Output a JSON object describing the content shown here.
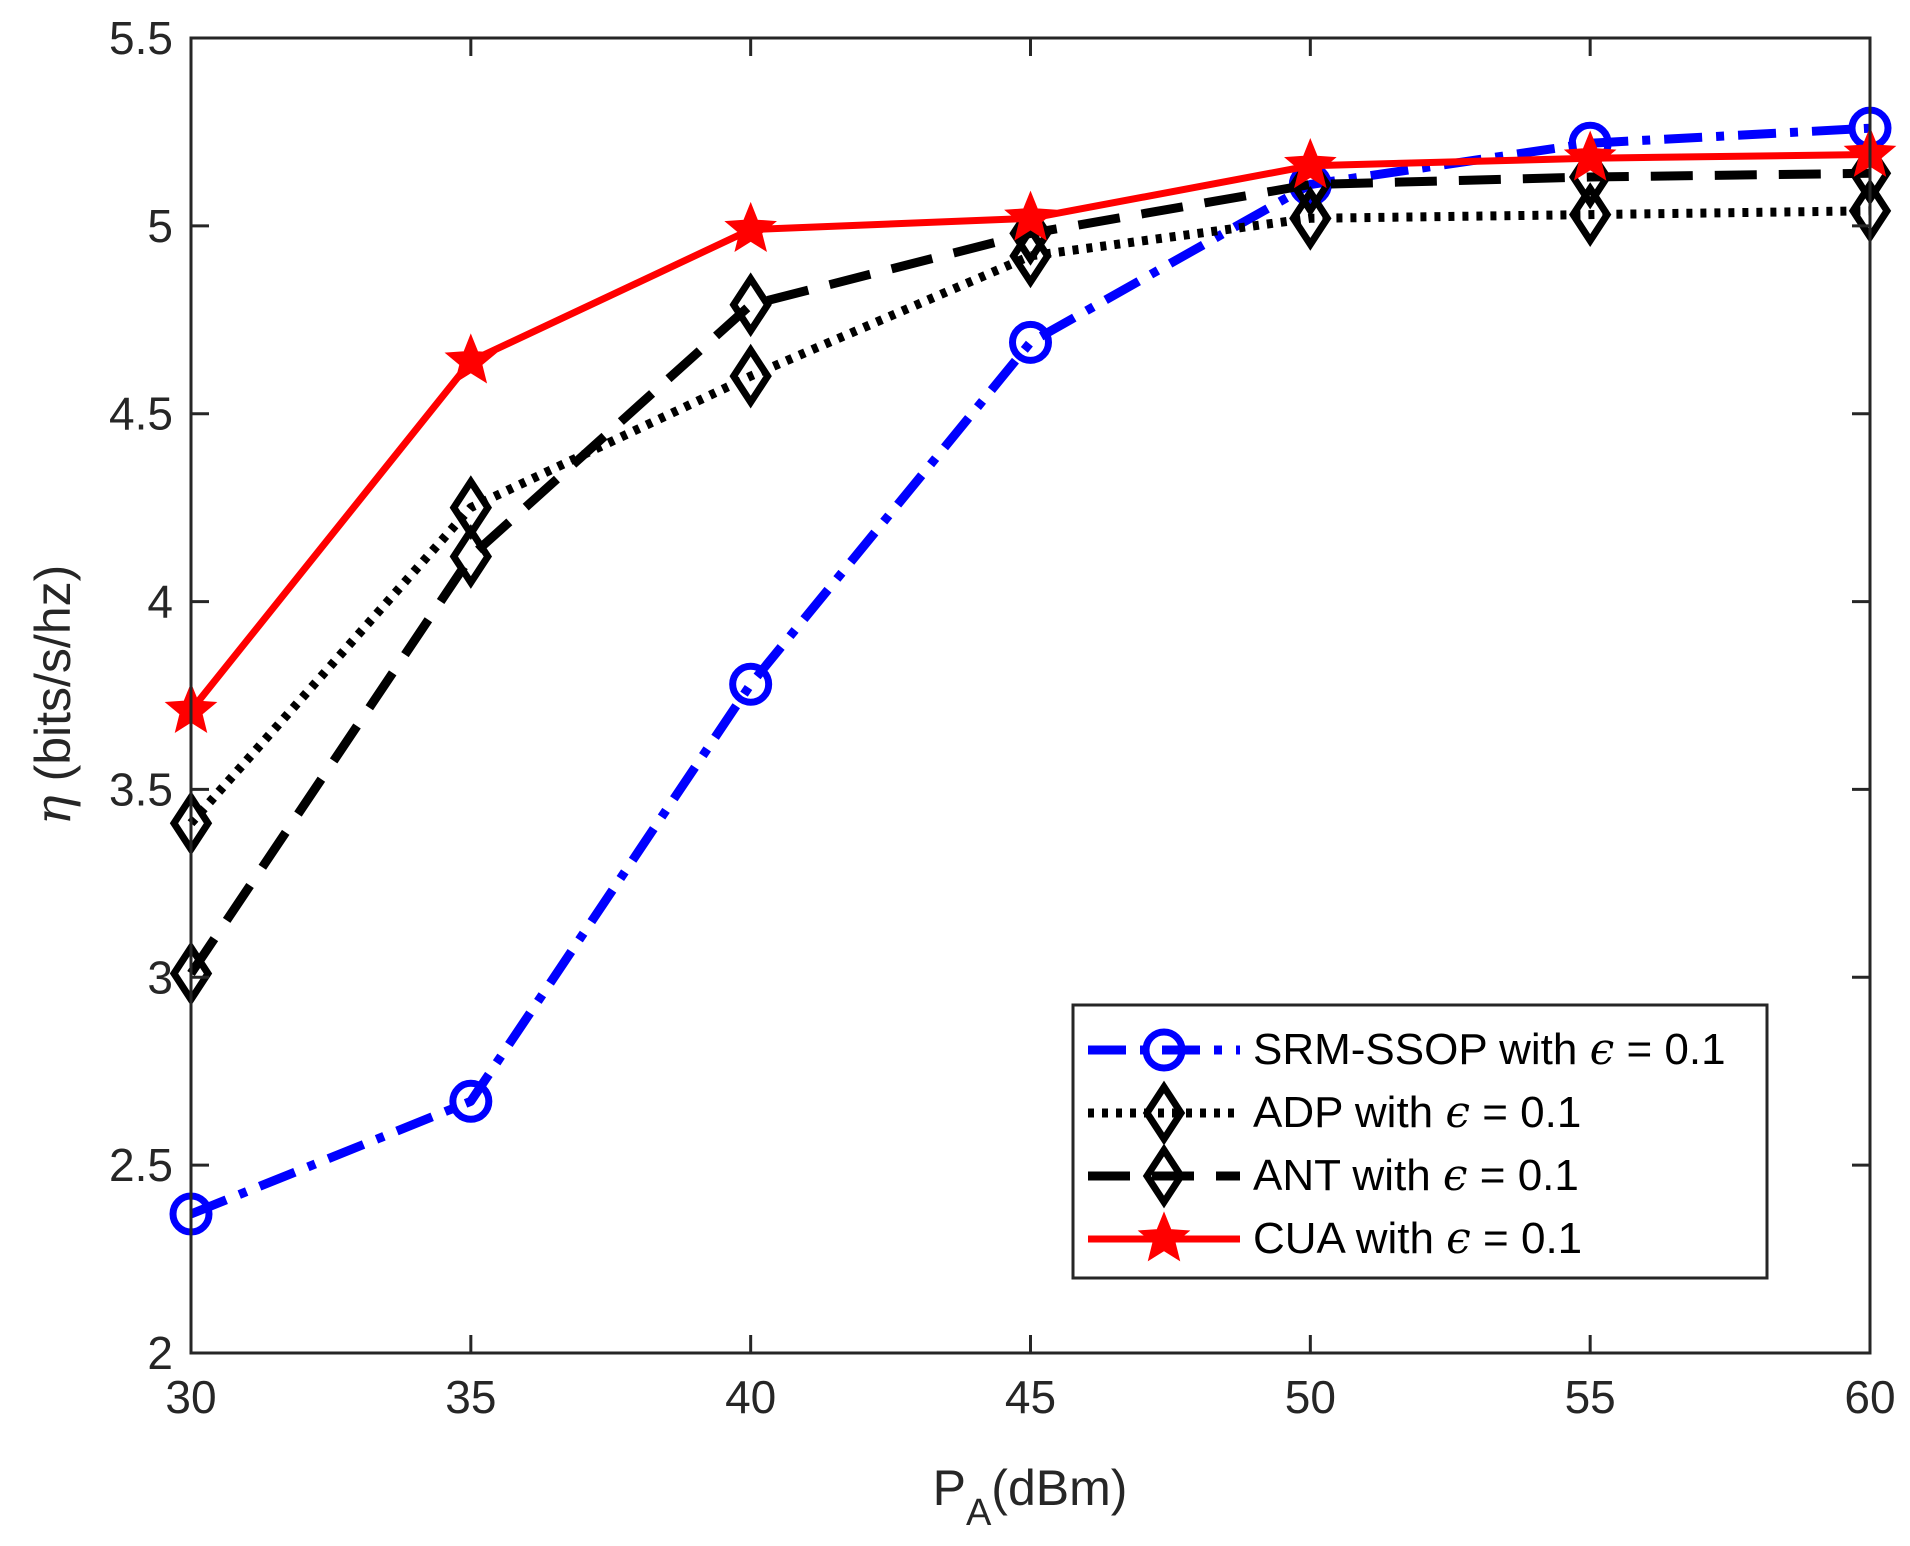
{
  "chart_data": {
    "type": "line",
    "title": "",
    "xlabel": {
      "main": "P",
      "sub": "A",
      "rest": "(dBm)"
    },
    "ylabel": {
      "symbol": "η",
      "rest": " (bits/s/hz)"
    },
    "xlim": [
      30,
      60
    ],
    "ylim": [
      2,
      5.5
    ],
    "xticks": [
      30,
      35,
      40,
      45,
      50,
      55,
      60
    ],
    "yticks": [
      2,
      2.5,
      3,
      3.5,
      4,
      4.5,
      5,
      5.5
    ],
    "xtick_labels": [
      "30",
      "35",
      "40",
      "45",
      "50",
      "55",
      "60"
    ],
    "ytick_labels": [
      "2",
      "2.5",
      "3",
      "3.5",
      "4",
      "4.5",
      "5",
      "5.5"
    ],
    "grid": false,
    "legend_position": "bottom-right",
    "x": [
      30,
      35,
      40,
      45,
      50,
      55,
      60
    ],
    "series": [
      {
        "name": "SRM-SSOP with ϵ = 0.1",
        "label_main": "SRM-SSOP with ",
        "label_eq": " = 0.1",
        "color": "#0000ff",
        "line_style": "dash-dot",
        "marker": "circle",
        "values": [
          2.37,
          2.67,
          3.78,
          4.69,
          5.11,
          5.22,
          5.26
        ]
      },
      {
        "name": "ADP with ϵ = 0.1",
        "label_main": "ADP with ",
        "label_eq": " = 0.1",
        "color": "#000000",
        "line_style": "dotted",
        "marker": "diamond",
        "values": [
          3.41,
          4.25,
          4.6,
          4.92,
          5.02,
          5.03,
          5.04
        ]
      },
      {
        "name": "ANT with ϵ = 0.1",
        "label_main": "ANT with ",
        "label_eq": " = 0.1",
        "color": "#000000",
        "line_style": "dashed",
        "marker": "diamond",
        "values": [
          3.01,
          4.12,
          4.79,
          4.98,
          5.11,
          5.13,
          5.14
        ]
      },
      {
        "name": "CUA with ϵ = 0.1",
        "label_main": "CUA with ",
        "label_eq": " = 0.1",
        "color": "#ff0000",
        "line_style": "solid",
        "marker": "star",
        "values": [
          3.71,
          4.64,
          4.99,
          5.02,
          5.16,
          5.18,
          5.19
        ]
      }
    ],
    "epsilon_symbol": "ϵ"
  }
}
